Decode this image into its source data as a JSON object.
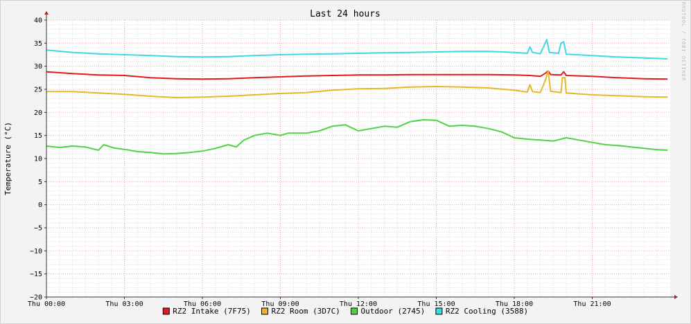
{
  "chart_data": {
    "type": "line",
    "title": "Last 24 hours",
    "ylabel": "Temperature (°C)",
    "watermark": "RRDTOOL / TOBI OETIKER",
    "xlim": [
      0,
      24
    ],
    "ylim": [
      -20,
      40
    ],
    "x_ticks": [
      {
        "x": 0,
        "label": "Thu 00:00"
      },
      {
        "x": 3,
        "label": "Thu 03:00"
      },
      {
        "x": 6,
        "label": "Thu 06:00"
      },
      {
        "x": 9,
        "label": "Thu 09:00"
      },
      {
        "x": 12,
        "label": "Thu 12:00"
      },
      {
        "x": 15,
        "label": "Thu 15:00"
      },
      {
        "x": 18,
        "label": "Thu 18:00"
      },
      {
        "x": 21,
        "label": "Thu 21:00"
      }
    ],
    "y_ticks": [
      40,
      35,
      30,
      25,
      20,
      15,
      10,
      5,
      0,
      -5,
      -10,
      -15,
      -20
    ],
    "grid": true,
    "legend_position": "bottom",
    "series": [
      {
        "name": "RZ2 Intake (7F75)",
        "color": "#e41a1c",
        "points": [
          [
            0,
            28.8
          ],
          [
            1,
            28.4
          ],
          [
            2,
            28.1
          ],
          [
            3,
            28.0
          ],
          [
            4,
            27.5
          ],
          [
            5,
            27.3
          ],
          [
            6,
            27.2
          ],
          [
            7,
            27.3
          ],
          [
            8,
            27.5
          ],
          [
            9,
            27.7
          ],
          [
            10,
            27.9
          ],
          [
            11,
            28.0
          ],
          [
            12,
            28.1
          ],
          [
            13,
            28.1
          ],
          [
            14,
            28.2
          ],
          [
            15,
            28.2
          ],
          [
            16,
            28.2
          ],
          [
            17,
            28.2
          ],
          [
            18,
            28.1
          ],
          [
            18.6,
            28.0
          ],
          [
            19.0,
            27.8
          ],
          [
            19.2,
            28.5
          ],
          [
            19.3,
            29.0
          ],
          [
            19.4,
            28.2
          ],
          [
            19.8,
            28.1
          ],
          [
            19.9,
            28.8
          ],
          [
            20.0,
            28.0
          ],
          [
            21,
            27.8
          ],
          [
            22,
            27.5
          ],
          [
            23,
            27.3
          ],
          [
            23.9,
            27.2
          ]
        ]
      },
      {
        "name": "RZ2 Room (3D7C)",
        "color": "#e5b825",
        "points": [
          [
            0,
            24.5
          ],
          [
            1,
            24.5
          ],
          [
            2,
            24.2
          ],
          [
            3,
            23.9
          ],
          [
            4,
            23.5
          ],
          [
            5,
            23.2
          ],
          [
            6,
            23.3
          ],
          [
            7,
            23.5
          ],
          [
            8,
            23.8
          ],
          [
            9,
            24.1
          ],
          [
            10,
            24.3
          ],
          [
            11,
            24.8
          ],
          [
            12,
            25.1
          ],
          [
            13,
            25.2
          ],
          [
            14,
            25.5
          ],
          [
            15,
            25.6
          ],
          [
            16,
            25.5
          ],
          [
            17,
            25.3
          ],
          [
            18,
            24.8
          ],
          [
            18.5,
            24.4
          ],
          [
            18.6,
            26.0
          ],
          [
            18.7,
            24.5
          ],
          [
            19.0,
            24.3
          ],
          [
            19.2,
            27.0
          ],
          [
            19.3,
            29.0
          ],
          [
            19.4,
            24.6
          ],
          [
            19.8,
            24.3
          ],
          [
            19.85,
            27.5
          ],
          [
            19.95,
            27.5
          ],
          [
            20.0,
            24.2
          ],
          [
            21,
            23.8
          ],
          [
            22,
            23.6
          ],
          [
            23,
            23.4
          ],
          [
            23.9,
            23.3
          ]
        ]
      },
      {
        "name": "Outdoor (2745)",
        "color": "#4ed443",
        "points": [
          [
            0,
            12.7
          ],
          [
            0.5,
            12.4
          ],
          [
            1,
            12.7
          ],
          [
            1.5,
            12.5
          ],
          [
            2,
            11.8
          ],
          [
            2.2,
            13.0
          ],
          [
            2.6,
            12.3
          ],
          [
            3,
            12.0
          ],
          [
            3.5,
            11.5
          ],
          [
            4,
            11.3
          ],
          [
            4.5,
            11.0
          ],
          [
            5,
            11.1
          ],
          [
            5.5,
            11.3
          ],
          [
            6,
            11.6
          ],
          [
            6.5,
            12.2
          ],
          [
            7,
            13.0
          ],
          [
            7.3,
            12.5
          ],
          [
            7.6,
            14.0
          ],
          [
            8,
            15.0
          ],
          [
            8.5,
            15.5
          ],
          [
            9,
            15.0
          ],
          [
            9.3,
            15.5
          ],
          [
            10,
            15.5
          ],
          [
            10.5,
            16.0
          ],
          [
            11,
            17.0
          ],
          [
            11.5,
            17.3
          ],
          [
            12,
            16.0
          ],
          [
            12.5,
            16.5
          ],
          [
            13,
            17.0
          ],
          [
            13.5,
            16.8
          ],
          [
            14,
            18.0
          ],
          [
            14.5,
            18.4
          ],
          [
            15,
            18.3
          ],
          [
            15.5,
            17.0
          ],
          [
            16,
            17.2
          ],
          [
            16.5,
            17.0
          ],
          [
            17,
            16.5
          ],
          [
            17.5,
            15.8
          ],
          [
            18,
            14.5
          ],
          [
            18.5,
            14.2
          ],
          [
            19,
            14.0
          ],
          [
            19.5,
            13.8
          ],
          [
            20,
            14.5
          ],
          [
            20.5,
            14.0
          ],
          [
            21,
            13.5
          ],
          [
            21.5,
            13.0
          ],
          [
            22,
            12.8
          ],
          [
            22.5,
            12.5
          ],
          [
            23,
            12.2
          ],
          [
            23.5,
            11.9
          ],
          [
            23.9,
            11.8
          ]
        ]
      },
      {
        "name": "RZ2 Cooling (3588)",
        "color": "#3fd8e3",
        "points": [
          [
            0,
            33.5
          ],
          [
            1,
            33.0
          ],
          [
            2,
            32.7
          ],
          [
            3,
            32.5
          ],
          [
            4,
            32.3
          ],
          [
            5,
            32.1
          ],
          [
            6,
            32.0
          ],
          [
            7,
            32.1
          ],
          [
            8,
            32.3
          ],
          [
            9,
            32.5
          ],
          [
            10,
            32.6
          ],
          [
            11,
            32.7
          ],
          [
            12,
            32.8
          ],
          [
            13,
            32.9
          ],
          [
            14,
            33.0
          ],
          [
            15,
            33.1
          ],
          [
            16,
            33.2
          ],
          [
            17,
            33.2
          ],
          [
            18,
            33.0
          ],
          [
            18.5,
            32.8
          ],
          [
            18.6,
            34.2
          ],
          [
            18.7,
            33.0
          ],
          [
            19.0,
            32.7
          ],
          [
            19.15,
            34.5
          ],
          [
            19.25,
            35.8
          ],
          [
            19.35,
            33.0
          ],
          [
            19.7,
            32.8
          ],
          [
            19.8,
            35.0
          ],
          [
            19.9,
            35.3
          ],
          [
            20.0,
            32.6
          ],
          [
            21,
            32.3
          ],
          [
            22,
            32.0
          ],
          [
            23,
            31.8
          ],
          [
            23.9,
            31.6
          ]
        ]
      }
    ]
  }
}
